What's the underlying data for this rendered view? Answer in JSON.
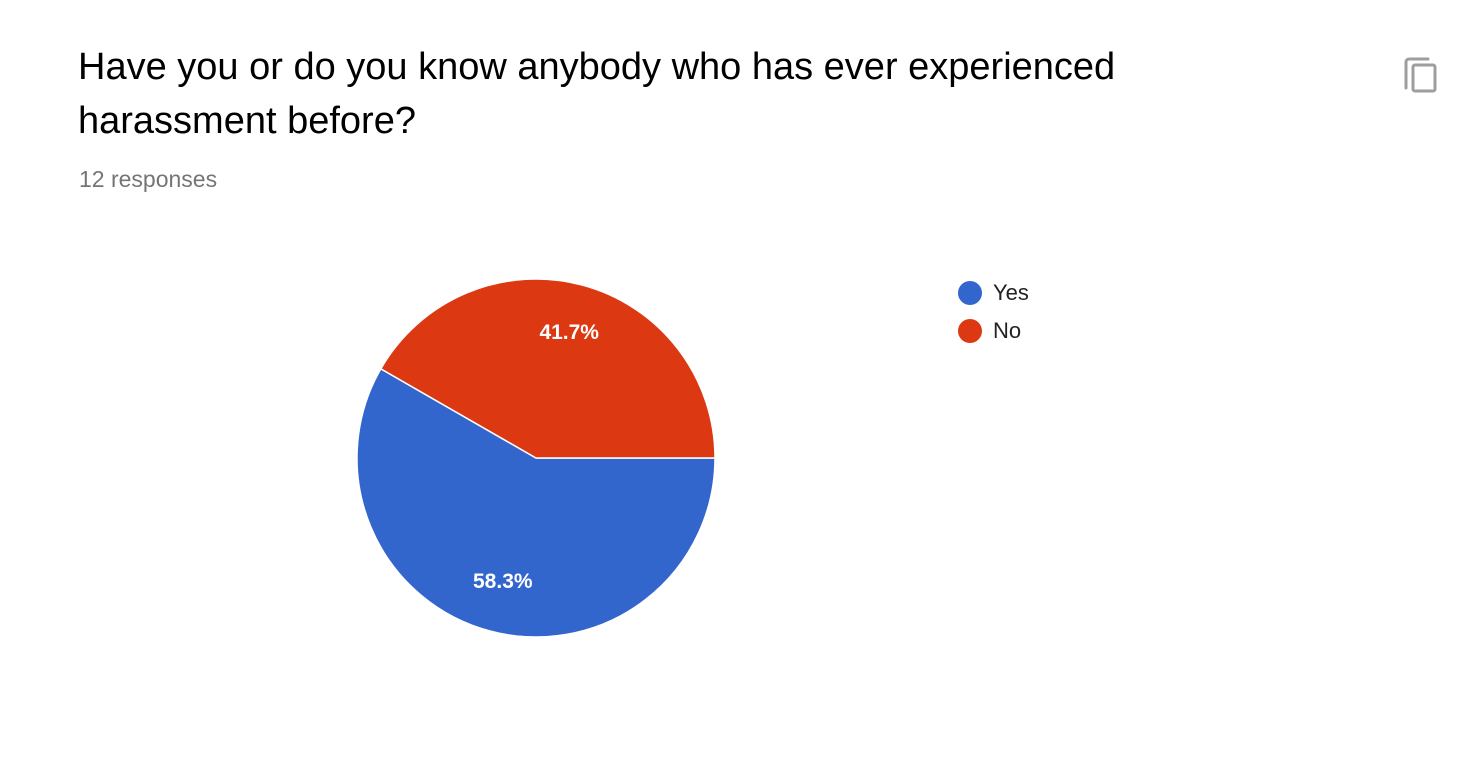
{
  "question": {
    "title": "Have you or do you know anybody who has ever experienced harassment before?",
    "responses": "12 responses"
  },
  "actions": {
    "copy_icon": "copy-icon"
  },
  "colors": {
    "yes": "#3366cc",
    "no": "#dc3912",
    "title": "#000000",
    "muted": "#757575"
  },
  "chart_data": {
    "type": "pie",
    "categories": [
      "Yes",
      "No"
    ],
    "values": [
      58.3,
      41.7
    ],
    "labels": [
      "58.3%",
      "41.7%"
    ],
    "legend_position": "right",
    "colors": [
      "#3366cc",
      "#dc3912"
    ]
  },
  "legend": {
    "items": [
      {
        "label": "Yes",
        "color": "#3366cc"
      },
      {
        "label": "No",
        "color": "#dc3912"
      }
    ]
  }
}
